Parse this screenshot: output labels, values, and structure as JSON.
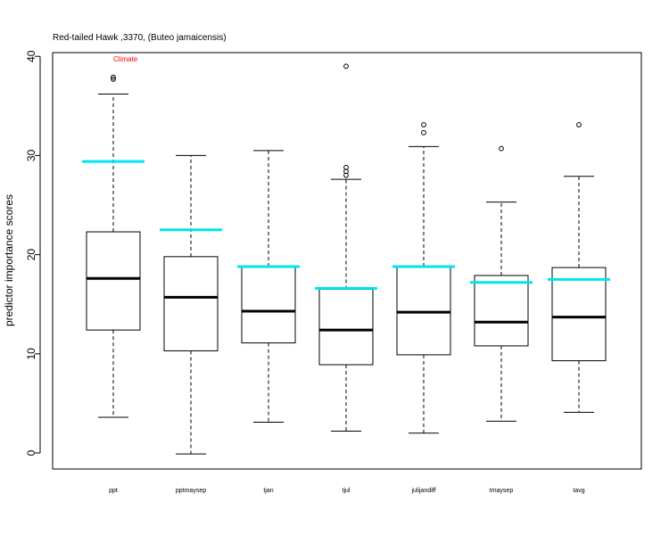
{
  "chart_data": {
    "type": "boxplot",
    "title": "Red-tailed Hawk ,3370, (Buteo jamaicensis)",
    "annotation": "Climate",
    "ylabel": "predictor importance scores",
    "xlabel": "",
    "ylim": [
      -1.5,
      41
    ],
    "yticks": [
      0,
      10,
      20,
      30,
      40
    ],
    "grid": false,
    "colors": {
      "box": "#000000",
      "median": "#000000",
      "reference": "#00e5ee",
      "annotation": "#ff0000"
    },
    "categories": [
      "ppt",
      "pptmaysep",
      "tjan",
      "tjul",
      "julijandiff",
      "tmaysep",
      "tavg"
    ],
    "boxes": [
      {
        "label": "ppt",
        "whisker_low": 3.6,
        "q1": 12.4,
        "median": 17.6,
        "q3": 22.3,
        "whisker_high": 36.2,
        "outliers": [
          37.7,
          37.9
        ],
        "reference": 29.4
      },
      {
        "label": "pptmaysep",
        "whisker_low": -0.1,
        "q1": 10.3,
        "median": 15.7,
        "q3": 19.8,
        "whisker_high": 30.0,
        "outliers": [],
        "reference": 22.5
      },
      {
        "label": "tjan",
        "whisker_low": 3.1,
        "q1": 11.1,
        "median": 14.3,
        "q3": 18.8,
        "whisker_high": 30.5,
        "outliers": [],
        "reference": 18.8
      },
      {
        "label": "tjul",
        "whisker_low": 2.2,
        "q1": 8.9,
        "median": 12.4,
        "q3": 16.5,
        "whisker_high": 27.6,
        "outliers": [
          28.0,
          28.4,
          28.8,
          39.0
        ],
        "reference": 16.6
      },
      {
        "label": "julijandiff",
        "whisker_low": 2.0,
        "q1": 9.9,
        "median": 14.2,
        "q3": 18.8,
        "whisker_high": 30.9,
        "outliers": [
          32.3,
          33.1
        ],
        "reference": 18.8
      },
      {
        "label": "tmaysep",
        "whisker_low": 3.2,
        "q1": 10.8,
        "median": 13.2,
        "q3": 17.9,
        "whisker_high": 25.3,
        "outliers": [
          30.7
        ],
        "reference": 17.2
      },
      {
        "label": "tavg",
        "whisker_low": 4.1,
        "q1": 9.3,
        "median": 13.7,
        "q3": 18.7,
        "whisker_high": 27.9,
        "outliers": [
          33.1
        ],
        "reference": 17.5
      }
    ]
  }
}
